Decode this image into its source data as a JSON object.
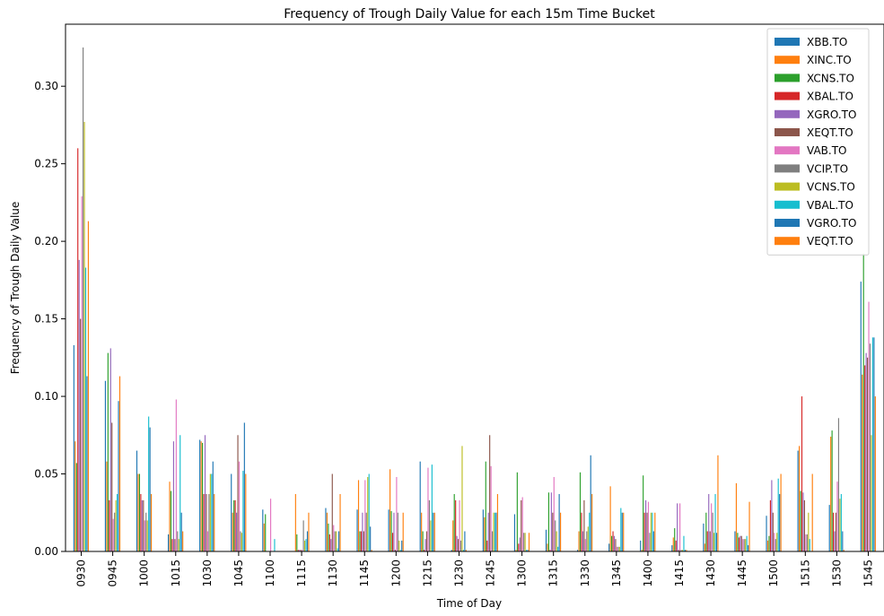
{
  "chart_data": {
    "type": "bar",
    "title": "Frequency of Trough Daily Value for each 15m Time Bucket",
    "xlabel": "Time of Day",
    "ylabel": "Frequency of Trough Daily Value",
    "ylim": [
      0,
      0.34
    ],
    "yticks": [
      "0.00",
      "0.05",
      "0.10",
      "0.15",
      "0.20",
      "0.25",
      "0.30"
    ],
    "grid": false,
    "legend_position": "top-right",
    "categories": [
      "0930",
      "0945",
      "1000",
      "1015",
      "1030",
      "1045",
      "1100",
      "1115",
      "1130",
      "1145",
      "1200",
      "1215",
      "1230",
      "1245",
      "1300",
      "1315",
      "1330",
      "1345",
      "1400",
      "1415",
      "1430",
      "1445",
      "1500",
      "1515",
      "1530",
      "1545"
    ],
    "series": [
      {
        "name": "XBB.TO",
        "color": "#1f77b4",
        "values": [
          0.133,
          0.11,
          0.065,
          0.011,
          0.072,
          0.05,
          0.027,
          0.0,
          0.028,
          0.027,
          0.027,
          0.058,
          0.001,
          0.027,
          0.024,
          0.014,
          0.001,
          0.005,
          0.007,
          0.004,
          0.018,
          0.013,
          0.023,
          0.065,
          0.03,
          0.174
        ]
      },
      {
        "name": "XINC.TO",
        "color": "#ff7f0e",
        "values": [
          0.071,
          0.058,
          0.05,
          0.045,
          0.071,
          0.025,
          0.018,
          0.037,
          0.025,
          0.046,
          0.053,
          0.025,
          0.02,
          0.022,
          0.001,
          0.005,
          0.013,
          0.042,
          0.001,
          0.009,
          0.005,
          0.044,
          0.007,
          0.068,
          0.074,
          0.114
        ]
      },
      {
        "name": "XCNS.TO",
        "color": "#2ca02c",
        "values": [
          0.057,
          0.128,
          0.05,
          0.039,
          0.07,
          0.033,
          0.024,
          0.011,
          0.018,
          0.013,
          0.026,
          0.013,
          0.037,
          0.058,
          0.051,
          0.038,
          0.051,
          0.01,
          0.049,
          0.015,
          0.025,
          0.012,
          0.01,
          0.039,
          0.078,
          0.192
        ]
      },
      {
        "name": "XBAL.TO",
        "color": "#d62728",
        "values": [
          0.26,
          0.033,
          0.037,
          0.008,
          0.037,
          0.033,
          0.0,
          0.001,
          0.011,
          0.013,
          0.012,
          0.001,
          0.033,
          0.007,
          0.005,
          0.001,
          0.025,
          0.013,
          0.025,
          0.007,
          0.013,
          0.009,
          0.033,
          0.1,
          0.025,
          0.12
        ]
      },
      {
        "name": "XGRO.TO",
        "color": "#9467bd",
        "values": [
          0.188,
          0.131,
          0.033,
          0.071,
          0.075,
          0.025,
          0.0,
          0.001,
          0.008,
          0.025,
          0.025,
          0.008,
          0.01,
          0.025,
          0.009,
          0.038,
          0.013,
          0.01,
          0.033,
          0.031,
          0.037,
          0.01,
          0.046,
          0.038,
          0.013,
          0.128
        ]
      },
      {
        "name": "XEQT.TO",
        "color": "#8c564b",
        "values": [
          0.15,
          0.083,
          0.033,
          0.008,
          0.037,
          0.075,
          0.0,
          0.001,
          0.05,
          0.013,
          0.001,
          0.013,
          0.008,
          0.075,
          0.033,
          0.025,
          0.033,
          0.008,
          0.025,
          0.001,
          0.013,
          0.01,
          0.025,
          0.033,
          0.025,
          0.125
        ]
      },
      {
        "name": "VAB.TO",
        "color": "#e377c2",
        "values": [
          0.229,
          0.021,
          0.02,
          0.098,
          0.013,
          0.058,
          0.034,
          0.001,
          0.017,
          0.046,
          0.048,
          0.054,
          0.033,
          0.055,
          0.035,
          0.048,
          0.008,
          0.003,
          0.032,
          0.031,
          0.031,
          0.008,
          0.012,
          0.011,
          0.045,
          0.161
        ]
      },
      {
        "name": "VCIP.TO",
        "color": "#7f7f7f",
        "values": [
          0.325,
          0.025,
          0.025,
          0.013,
          0.037,
          0.013,
          0.0,
          0.02,
          0.013,
          0.025,
          0.025,
          0.033,
          0.007,
          0.013,
          0.012,
          0.02,
          0.013,
          0.003,
          0.012,
          0.001,
          0.025,
          0.008,
          0.008,
          0.011,
          0.086,
          0.134
        ]
      },
      {
        "name": "VCNS.TO",
        "color": "#bcbd22",
        "values": [
          0.277,
          0.033,
          0.02,
          0.008,
          0.05,
          0.012,
          0.0,
          0.007,
          0.013,
          0.048,
          0.007,
          0.02,
          0.068,
          0.025,
          0.012,
          0.013,
          0.016,
          0.003,
          0.025,
          0.001,
          0.012,
          0.008,
          0.012,
          0.025,
          0.034,
          0.075
        ]
      },
      {
        "name": "VBAL.TO",
        "color": "#17becf",
        "values": [
          0.183,
          0.037,
          0.087,
          0.075,
          0.05,
          0.052,
          0.008,
          0.008,
          0.002,
          0.05,
          0.001,
          0.056,
          0.001,
          0.025,
          0.001,
          0.003,
          0.025,
          0.028,
          0.025,
          0.01,
          0.037,
          0.01,
          0.047,
          0.008,
          0.037,
          0.138
        ]
      },
      {
        "name": "VGRO.TO",
        "color": "#1f77b4",
        "values": [
          0.113,
          0.097,
          0.08,
          0.025,
          0.058,
          0.083,
          0.0,
          0.013,
          0.013,
          0.016,
          0.007,
          0.025,
          0.013,
          0.025,
          0.001,
          0.037,
          0.062,
          0.025,
          0.013,
          0.001,
          0.012,
          0.004,
          0.037,
          0.0,
          0.013,
          0.138
        ]
      },
      {
        "name": "VEQT.TO",
        "color": "#ff7f0e",
        "values": [
          0.213,
          0.113,
          0.037,
          0.013,
          0.037,
          0.05,
          0.0,
          0.025,
          0.037,
          0.001,
          0.025,
          0.025,
          0.001,
          0.037,
          0.012,
          0.025,
          0.037,
          0.025,
          0.025,
          0.001,
          0.062,
          0.032,
          0.05,
          0.05,
          0.001,
          0.1
        ]
      }
    ]
  }
}
